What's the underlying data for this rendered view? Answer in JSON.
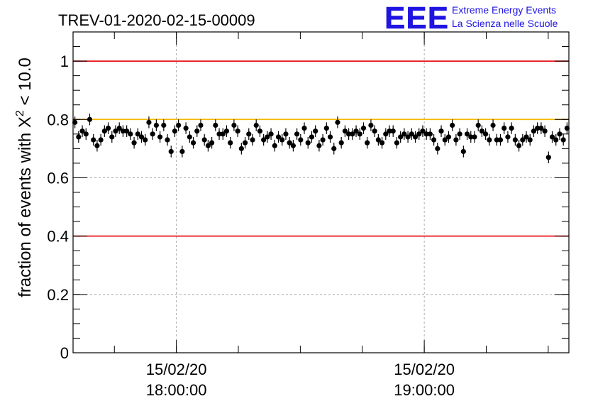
{
  "chart_data": {
    "type": "scatter",
    "title": "TREV-01-2020-02-15-00009",
    "ylabel": "fraction of events with Χ² < 10.0",
    "ylabel_main": "fraction of events with Χ",
    "ylabel_sup": "2",
    "ylabel_tail": " < 10.0",
    "xlabel": "",
    "ylim": [
      0,
      1.1
    ],
    "xlim": [
      "17:35:00",
      "19:35:00"
    ],
    "yticks": [
      0,
      0.2,
      0.4,
      0.6,
      0.8,
      1
    ],
    "ytick_labels": [
      "0",
      "0.2",
      "0.4",
      "0.6",
      "0.8",
      "1"
    ],
    "xticks": [
      {
        "time": "18:00:00",
        "date_label": "15/02/20",
        "time_label": "18:00:00"
      },
      {
        "time": "19:00:00",
        "date_label": "15/02/20",
        "time_label": "19:00:00"
      }
    ],
    "grid": true,
    "reference_lines": [
      {
        "y": 1.0,
        "color": "#e8141a"
      },
      {
        "y": 0.8,
        "color": "#f5b800"
      },
      {
        "y": 0.4,
        "color": "#e8141a"
      }
    ],
    "series": [
      {
        "marker_color": "#000000",
        "x_start": "17:35:00",
        "x_end": "19:35:00",
        "y_error": 0.02,
        "y": [
          0.79,
          0.74,
          0.76,
          0.75,
          0.8,
          0.73,
          0.71,
          0.73,
          0.76,
          0.77,
          0.74,
          0.76,
          0.77,
          0.76,
          0.76,
          0.75,
          0.72,
          0.75,
          0.74,
          0.73,
          0.79,
          0.75,
          0.78,
          0.74,
          0.78,
          0.73,
          0.69,
          0.76,
          0.78,
          0.69,
          0.77,
          0.74,
          0.72,
          0.76,
          0.78,
          0.73,
          0.71,
          0.72,
          0.78,
          0.75,
          0.75,
          0.76,
          0.72,
          0.78,
          0.76,
          0.7,
          0.72,
          0.75,
          0.73,
          0.78,
          0.76,
          0.73,
          0.74,
          0.75,
          0.71,
          0.74,
          0.73,
          0.75,
          0.72,
          0.71,
          0.75,
          0.73,
          0.77,
          0.72,
          0.74,
          0.76,
          0.71,
          0.73,
          0.77,
          0.74,
          0.7,
          0.79,
          0.72,
          0.76,
          0.75,
          0.75,
          0.76,
          0.75,
          0.77,
          0.72,
          0.78,
          0.76,
          0.73,
          0.72,
          0.75,
          0.76,
          0.76,
          0.72,
          0.74,
          0.75,
          0.74,
          0.75,
          0.74,
          0.75,
          0.76,
          0.75,
          0.75,
          0.73,
          0.7,
          0.76,
          0.73,
          0.74,
          0.78,
          0.73,
          0.75,
          0.69,
          0.75,
          0.74,
          0.74,
          0.78,
          0.76,
          0.75,
          0.73,
          0.78,
          0.73,
          0.73,
          0.77,
          0.74,
          0.77,
          0.73,
          0.71,
          0.73,
          0.74,
          0.73,
          0.76,
          0.77,
          0.77,
          0.76,
          0.67,
          0.74,
          0.73,
          0.75,
          0.73,
          0.77
        ]
      }
    ]
  },
  "logo": {
    "letters": "EEE",
    "line1": "Extreme Energy Events",
    "line2": "La Scienza nelle Scuole",
    "color": "#1f14e0"
  }
}
